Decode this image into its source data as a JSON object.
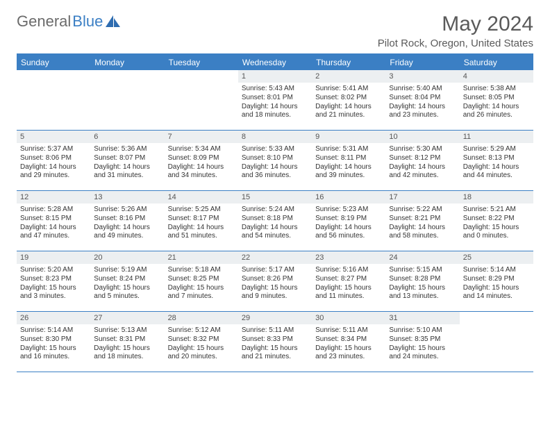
{
  "logo": {
    "text_gray": "General",
    "text_blue": "Blue"
  },
  "title": "May 2024",
  "location": "Pilot Rock, Oregon, United States",
  "colors": {
    "accent": "#3b7fc4",
    "header_text": "#ffffff",
    "daynum_bg": "#eceff1",
    "text": "#333333",
    "title_text": "#5a5a5a"
  },
  "day_names": [
    "Sunday",
    "Monday",
    "Tuesday",
    "Wednesday",
    "Thursday",
    "Friday",
    "Saturday"
  ],
  "weeks": [
    [
      null,
      null,
      null,
      {
        "n": "1",
        "sr": "Sunrise: 5:43 AM",
        "ss": "Sunset: 8:01 PM",
        "dl": "Daylight: 14 hours and 18 minutes."
      },
      {
        "n": "2",
        "sr": "Sunrise: 5:41 AM",
        "ss": "Sunset: 8:02 PM",
        "dl": "Daylight: 14 hours and 21 minutes."
      },
      {
        "n": "3",
        "sr": "Sunrise: 5:40 AM",
        "ss": "Sunset: 8:04 PM",
        "dl": "Daylight: 14 hours and 23 minutes."
      },
      {
        "n": "4",
        "sr": "Sunrise: 5:38 AM",
        "ss": "Sunset: 8:05 PM",
        "dl": "Daylight: 14 hours and 26 minutes."
      }
    ],
    [
      {
        "n": "5",
        "sr": "Sunrise: 5:37 AM",
        "ss": "Sunset: 8:06 PM",
        "dl": "Daylight: 14 hours and 29 minutes."
      },
      {
        "n": "6",
        "sr": "Sunrise: 5:36 AM",
        "ss": "Sunset: 8:07 PM",
        "dl": "Daylight: 14 hours and 31 minutes."
      },
      {
        "n": "7",
        "sr": "Sunrise: 5:34 AM",
        "ss": "Sunset: 8:09 PM",
        "dl": "Daylight: 14 hours and 34 minutes."
      },
      {
        "n": "8",
        "sr": "Sunrise: 5:33 AM",
        "ss": "Sunset: 8:10 PM",
        "dl": "Daylight: 14 hours and 36 minutes."
      },
      {
        "n": "9",
        "sr": "Sunrise: 5:31 AM",
        "ss": "Sunset: 8:11 PM",
        "dl": "Daylight: 14 hours and 39 minutes."
      },
      {
        "n": "10",
        "sr": "Sunrise: 5:30 AM",
        "ss": "Sunset: 8:12 PM",
        "dl": "Daylight: 14 hours and 42 minutes."
      },
      {
        "n": "11",
        "sr": "Sunrise: 5:29 AM",
        "ss": "Sunset: 8:13 PM",
        "dl": "Daylight: 14 hours and 44 minutes."
      }
    ],
    [
      {
        "n": "12",
        "sr": "Sunrise: 5:28 AM",
        "ss": "Sunset: 8:15 PM",
        "dl": "Daylight: 14 hours and 47 minutes."
      },
      {
        "n": "13",
        "sr": "Sunrise: 5:26 AM",
        "ss": "Sunset: 8:16 PM",
        "dl": "Daylight: 14 hours and 49 minutes."
      },
      {
        "n": "14",
        "sr": "Sunrise: 5:25 AM",
        "ss": "Sunset: 8:17 PM",
        "dl": "Daylight: 14 hours and 51 minutes."
      },
      {
        "n": "15",
        "sr": "Sunrise: 5:24 AM",
        "ss": "Sunset: 8:18 PM",
        "dl": "Daylight: 14 hours and 54 minutes."
      },
      {
        "n": "16",
        "sr": "Sunrise: 5:23 AM",
        "ss": "Sunset: 8:19 PM",
        "dl": "Daylight: 14 hours and 56 minutes."
      },
      {
        "n": "17",
        "sr": "Sunrise: 5:22 AM",
        "ss": "Sunset: 8:21 PM",
        "dl": "Daylight: 14 hours and 58 minutes."
      },
      {
        "n": "18",
        "sr": "Sunrise: 5:21 AM",
        "ss": "Sunset: 8:22 PM",
        "dl": "Daylight: 15 hours and 0 minutes."
      }
    ],
    [
      {
        "n": "19",
        "sr": "Sunrise: 5:20 AM",
        "ss": "Sunset: 8:23 PM",
        "dl": "Daylight: 15 hours and 3 minutes."
      },
      {
        "n": "20",
        "sr": "Sunrise: 5:19 AM",
        "ss": "Sunset: 8:24 PM",
        "dl": "Daylight: 15 hours and 5 minutes."
      },
      {
        "n": "21",
        "sr": "Sunrise: 5:18 AM",
        "ss": "Sunset: 8:25 PM",
        "dl": "Daylight: 15 hours and 7 minutes."
      },
      {
        "n": "22",
        "sr": "Sunrise: 5:17 AM",
        "ss": "Sunset: 8:26 PM",
        "dl": "Daylight: 15 hours and 9 minutes."
      },
      {
        "n": "23",
        "sr": "Sunrise: 5:16 AM",
        "ss": "Sunset: 8:27 PM",
        "dl": "Daylight: 15 hours and 11 minutes."
      },
      {
        "n": "24",
        "sr": "Sunrise: 5:15 AM",
        "ss": "Sunset: 8:28 PM",
        "dl": "Daylight: 15 hours and 13 minutes."
      },
      {
        "n": "25",
        "sr": "Sunrise: 5:14 AM",
        "ss": "Sunset: 8:29 PM",
        "dl": "Daylight: 15 hours and 14 minutes."
      }
    ],
    [
      {
        "n": "26",
        "sr": "Sunrise: 5:14 AM",
        "ss": "Sunset: 8:30 PM",
        "dl": "Daylight: 15 hours and 16 minutes."
      },
      {
        "n": "27",
        "sr": "Sunrise: 5:13 AM",
        "ss": "Sunset: 8:31 PM",
        "dl": "Daylight: 15 hours and 18 minutes."
      },
      {
        "n": "28",
        "sr": "Sunrise: 5:12 AM",
        "ss": "Sunset: 8:32 PM",
        "dl": "Daylight: 15 hours and 20 minutes."
      },
      {
        "n": "29",
        "sr": "Sunrise: 5:11 AM",
        "ss": "Sunset: 8:33 PM",
        "dl": "Daylight: 15 hours and 21 minutes."
      },
      {
        "n": "30",
        "sr": "Sunrise: 5:11 AM",
        "ss": "Sunset: 8:34 PM",
        "dl": "Daylight: 15 hours and 23 minutes."
      },
      {
        "n": "31",
        "sr": "Sunrise: 5:10 AM",
        "ss": "Sunset: 8:35 PM",
        "dl": "Daylight: 15 hours and 24 minutes."
      },
      null
    ]
  ]
}
